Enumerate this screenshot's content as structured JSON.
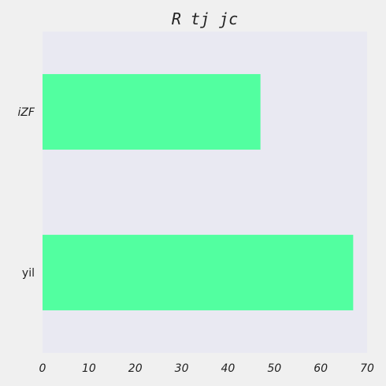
{
  "chart_data": {
    "type": "bar",
    "orientation": "horizontal",
    "title": "R tj jc",
    "xlabel": "",
    "ylabel": "",
    "categories": [
      "iZF",
      "yil"
    ],
    "values": [
      47,
      67
    ],
    "xlim": [
      0,
      70
    ],
    "xticks": [
      "0",
      "10",
      "20",
      "30",
      "40",
      "50",
      "60",
      "70"
    ],
    "grid": false,
    "colors": {
      "bar": "#52ffa0",
      "plot_background": "#e9e9f2",
      "page_background": "#f0f0f0"
    }
  }
}
